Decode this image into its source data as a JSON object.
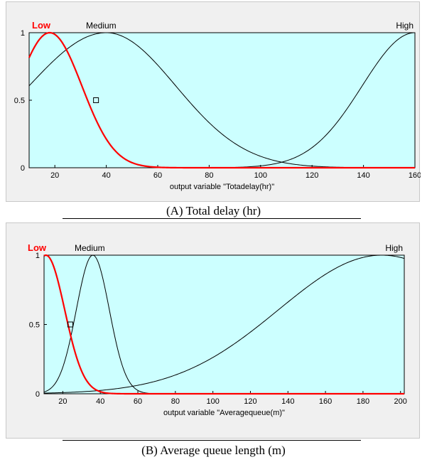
{
  "charts_meta": {
    "colors": {
      "plot_bg": "#ccffff",
      "low_line": "#ff0000",
      "other_line": "#000000",
      "frame_bg": "#f0f0f0",
      "low_label": "#ff0000"
    }
  },
  "chart_data": [
    {
      "type": "line",
      "title": "",
      "xlabel": "output variable \"Totadelay(hr)\"",
      "caption": "(A) Total delay (hr)",
      "xlim": [
        10,
        160
      ],
      "ylim": [
        0,
        1
      ],
      "x_ticks": [
        "20",
        "40",
        "60",
        "80",
        "100",
        "120",
        "140",
        "160"
      ],
      "y_ticks": [
        "0",
        "0.5",
        "1"
      ],
      "grid": false,
      "mf_labels": [
        "Low",
        "Medium",
        "High"
      ],
      "series": [
        {
          "name": "Low",
          "shape": "gaussian",
          "center": 18,
          "sigma": 12.5,
          "color": "#ff0000",
          "values_sample": {
            "x": [
              10,
              18,
              30,
              36,
              50,
              60,
              70
            ],
            "y": [
              0.87,
              1.0,
              0.72,
              0.5,
              0.11,
              0.02,
              0.0
            ]
          }
        },
        {
          "name": "Medium",
          "shape": "gauss2",
          "center": 40,
          "sigma_left": 30,
          "sigma_right": 27,
          "color": "#000000",
          "values_sample": {
            "x": [
              10,
              40,
              80,
              100,
              112
            ],
            "y": [
              0.5,
              1.0,
              0.32,
              0.06,
              0.0
            ]
          }
        },
        {
          "name": "High",
          "shape": "gauss2",
          "center": 160,
          "sigma": 20.5,
          "color": "#000000",
          "values_sample": {
            "x": [
              112,
              130,
              140,
              150,
              160
            ],
            "y": [
              0.07,
              0.37,
              0.62,
              0.89,
              1.0
            ]
          }
        }
      ],
      "marker": {
        "x": 36,
        "y": 0.5
      }
    },
    {
      "type": "line",
      "title": "",
      "xlabel": "output variable \"Averagequeue(m)\"",
      "caption": "(B) Average queue length (m)",
      "xlim": [
        10,
        202
      ],
      "ylim": [
        0,
        1
      ],
      "x_ticks": [
        "20",
        "40",
        "60",
        "80",
        "100",
        "120",
        "140",
        "160",
        "180",
        "200"
      ],
      "y_ticks": [
        "0",
        "0.5",
        "1"
      ],
      "grid": false,
      "mf_labels": [
        "Low",
        "Medium",
        "High"
      ],
      "series": [
        {
          "name": "Low",
          "shape": "gaussian",
          "center": 11,
          "sigma": 10,
          "color": "#ff0000",
          "values_sample": {
            "x": [
              10,
              12,
              20,
              24,
              30,
              40
            ],
            "y": [
              0.98,
              1.0,
              0.67,
              0.5,
              0.15,
              0.01
            ]
          }
        },
        {
          "name": "Medium",
          "shape": "gaussian",
          "center": 36,
          "sigma": 8.8,
          "color": "#000000",
          "values_sample": {
            "x": [
              10,
              24,
              36,
              50,
              60
            ],
            "y": [
              0.04,
              0.45,
              1.0,
              0.27,
              0.02
            ]
          }
        },
        {
          "name": "High",
          "shape": "gauss2",
          "center": 190,
          "sigma": 55,
          "color": "#000000",
          "values_sample": {
            "x": [
              60,
              100,
              140,
              180,
              200
            ],
            "y": [
              0.06,
              0.15,
              0.55,
              0.98,
              0.99
            ]
          }
        }
      ],
      "marker": {
        "x": 24,
        "y": 0.5
      }
    }
  ]
}
